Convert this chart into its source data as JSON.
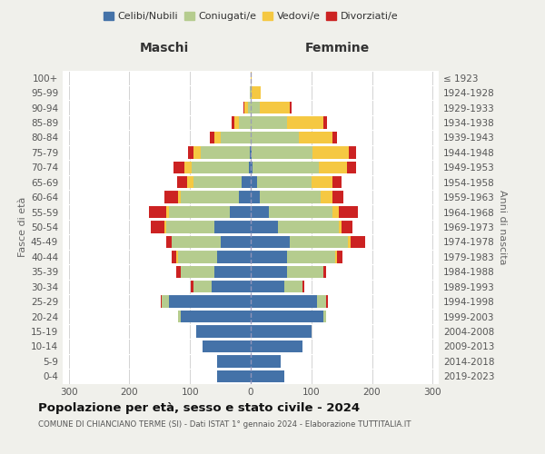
{
  "age_groups": [
    "0-4",
    "5-9",
    "10-14",
    "15-19",
    "20-24",
    "25-29",
    "30-34",
    "35-39",
    "40-44",
    "45-49",
    "50-54",
    "55-59",
    "60-64",
    "65-69",
    "70-74",
    "75-79",
    "80-84",
    "85-89",
    "90-94",
    "95-99",
    "100+"
  ],
  "birth_years": [
    "2019-2023",
    "2014-2018",
    "2009-2013",
    "2004-2008",
    "1999-2003",
    "1994-1998",
    "1989-1993",
    "1984-1988",
    "1979-1983",
    "1974-1978",
    "1969-1973",
    "1964-1968",
    "1959-1963",
    "1954-1958",
    "1949-1953",
    "1944-1948",
    "1939-1943",
    "1934-1938",
    "1929-1933",
    "1924-1928",
    "≤ 1923"
  ],
  "maschi": {
    "celibi": [
      55,
      55,
      80,
      90,
      115,
      135,
      65,
      60,
      55,
      50,
      60,
      35,
      20,
      15,
      3,
      2,
      0,
      0,
      0,
      0,
      0
    ],
    "coniugati": [
      0,
      0,
      0,
      0,
      5,
      12,
      30,
      55,
      65,
      80,
      80,
      100,
      95,
      80,
      95,
      80,
      50,
      20,
      5,
      1,
      0
    ],
    "vedovi": [
      0,
      0,
      0,
      0,
      0,
      0,
      0,
      0,
      3,
      0,
      3,
      4,
      5,
      10,
      12,
      12,
      10,
      7,
      5,
      0,
      0
    ],
    "divorziati": [
      0,
      0,
      0,
      0,
      0,
      2,
      4,
      8,
      7,
      10,
      22,
      28,
      22,
      17,
      18,
      9,
      7,
      5,
      2,
      0,
      0
    ]
  },
  "femmine": {
    "nubili": [
      55,
      50,
      85,
      100,
      120,
      110,
      55,
      60,
      60,
      65,
      45,
      30,
      15,
      10,
      3,
      2,
      0,
      0,
      0,
      0,
      0
    ],
    "coniugate": [
      0,
      0,
      0,
      0,
      5,
      15,
      30,
      60,
      80,
      95,
      100,
      105,
      100,
      90,
      110,
      100,
      80,
      60,
      15,
      2,
      0
    ],
    "vedove": [
      0,
      0,
      0,
      0,
      0,
      0,
      0,
      0,
      3,
      4,
      5,
      10,
      20,
      35,
      45,
      60,
      55,
      60,
      50,
      15,
      2
    ],
    "divorziate": [
      0,
      0,
      0,
      0,
      0,
      2,
      3,
      5,
      8,
      25,
      17,
      32,
      18,
      15,
      15,
      12,
      8,
      6,
      2,
      0,
      0
    ]
  },
  "colors": {
    "celibi": "#4472a8",
    "coniugati": "#b5cc8e",
    "vedovi": "#f5c842",
    "divorziati": "#cc2222"
  },
  "xlim": 310,
  "title": "Popolazione per età, sesso e stato civile - 2024",
  "subtitle": "COMUNE DI CHIANCIANO TERME (SI) - Dati ISTAT 1° gennaio 2024 - Elaborazione TUTTITALIA.IT",
  "xlabel_left": "Maschi",
  "xlabel_right": "Femmine",
  "ylabel_left": "Fasce di età",
  "ylabel_right": "Anni di nascita",
  "bg_color": "#f0f0eb",
  "plot_bg": "#ffffff"
}
